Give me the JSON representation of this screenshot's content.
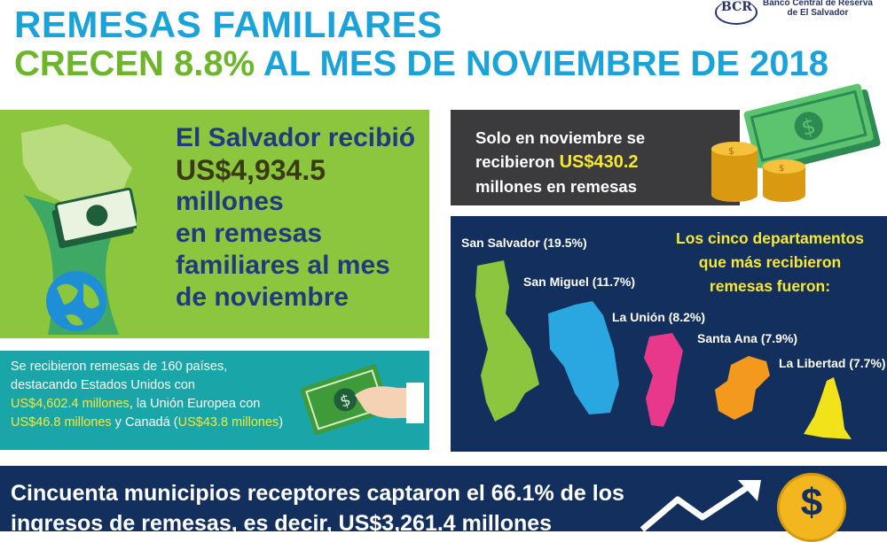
{
  "header": {
    "title_line1": "REMESAS FAMILIARES",
    "title_line2_part1": "CRECEN 8.8%",
    "title_line2_part2": "AL MES DE NOVIEMBRE DE 2018",
    "logo_text": "BCR",
    "bank_line1": "Banco Central de Reserva",
    "bank_line2": "de El Salvador"
  },
  "green_panel": {
    "line1": "El Salvador recibió",
    "amount": "US$4,934.5",
    "line3": "millones",
    "line4": "en remesas",
    "line5": "familiares al mes",
    "line6": "de noviembre"
  },
  "teal_panel": {
    "t1": "Se recibieron remesas de 160 países,",
    "t2": "destacando Estados Unidos con",
    "us_amount": "US$4,602.4 millones",
    "t3": ", la Unión Europea con",
    "eu_amount": "US$46.8 millones",
    "t4": " y Canadá (",
    "ca_amount": "US$43.8 millones",
    "t5": ")"
  },
  "november_panel": {
    "line1": "Solo en noviembre se",
    "line2_pre": "recibieron ",
    "amount": "US$430.2",
    "line3": "millones en remesas"
  },
  "departments": {
    "title_line1": "Los cinco departamentos",
    "title_line2": "que más recibieron",
    "title_line3": "remesas fueron:",
    "items": [
      {
        "label": "San Salvador (19.5%)",
        "color": "#8cc63f",
        "share": 19.5
      },
      {
        "label": "San Miguel (11.7%)",
        "color": "#2aa7e0",
        "share": 11.7
      },
      {
        "label": "La Unión (8.2%)",
        "color": "#e8388c",
        "share": 8.2
      },
      {
        "label": "Santa Ana (7.9%)",
        "color": "#f39a1e",
        "share": 7.9
      },
      {
        "label": "La Libertad (7.7%)",
        "color": "#f2e21a",
        "share": 7.7
      }
    ]
  },
  "bottom": {
    "line1": "Cincuenta municipios receptores captaron el 66.1% de los",
    "line2": "ingresos de remesas, es decir, US$3,261.4 millones",
    "coin_symbol": "$"
  },
  "colors": {
    "title_blue": "#1aa3d8",
    "title_green": "#6db52a",
    "navy": "#132f5e",
    "highlight_yellow": "#f7e834"
  }
}
